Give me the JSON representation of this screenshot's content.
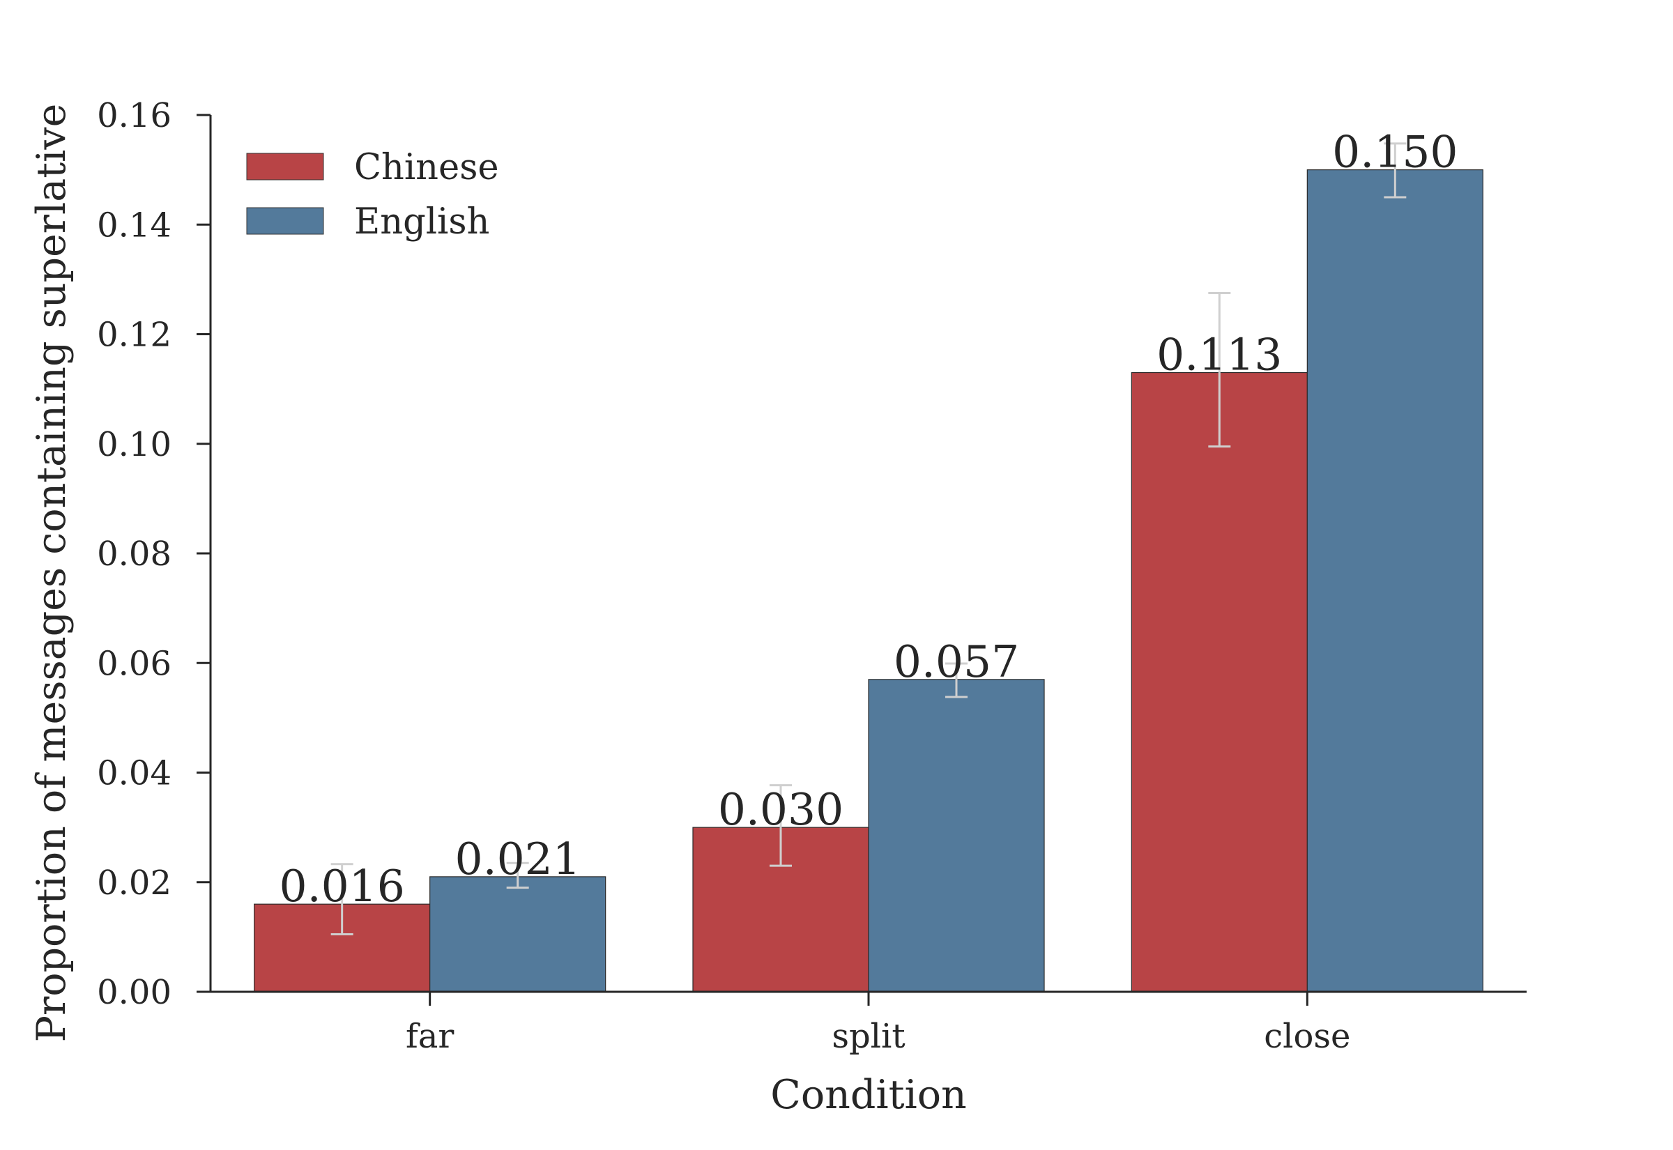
{
  "chart_data": {
    "type": "bar",
    "title": "",
    "xlabel": "Condition",
    "ylabel": "Proportion of messages containing superlative",
    "categories": [
      "far",
      "split",
      "close"
    ],
    "ylim": [
      0,
      0.16
    ],
    "yticks": [
      "0.00",
      "0.02",
      "0.04",
      "0.06",
      "0.08",
      "0.10",
      "0.12",
      "0.14",
      "0.16"
    ],
    "grid": false,
    "legend_position": "top-left",
    "series": [
      {
        "name": "Chinese",
        "color": "#b84446",
        "values": [
          0.016,
          0.03,
          0.113
        ],
        "labels": [
          "0.016",
          "0.030",
          "0.113"
        ],
        "error_low": [
          0.0105,
          0.023,
          0.0995
        ],
        "error_high": [
          0.0233,
          0.0377,
          0.1275
        ]
      },
      {
        "name": "English",
        "color": "#537a9b",
        "values": [
          0.021,
          0.057,
          0.15
        ],
        "labels": [
          "0.021",
          "0.057",
          "0.150"
        ],
        "error_low": [
          0.019,
          0.0538,
          0.145
        ],
        "error_high": [
          0.0235,
          0.0599,
          0.1548
        ]
      }
    ],
    "error_bar_color": "#cfcfcf"
  }
}
